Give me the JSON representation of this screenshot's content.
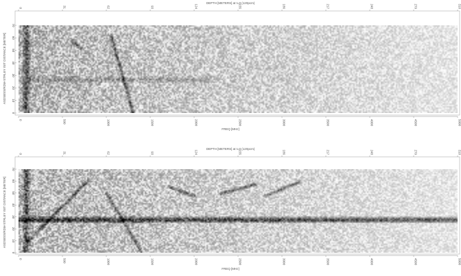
{
  "chart_data": [
    {
      "type": "heatmap",
      "title": "DEPTH [METERS] at t=0 (120pcm)",
      "xlabel": "FREQ [MHz]",
      "ylabel": "ASDSBSS/RDM-STRLEY ISIT  DISTANCE [METER]",
      "x_ticks": [
        "0",
        "500",
        "1000",
        "1500",
        "2000",
        "2500",
        "3000",
        "3500",
        "4000",
        "4500",
        "5000"
      ],
      "top_ticks": [
        "0",
        "31",
        "62",
        "93",
        "124",
        "155",
        "186",
        "217",
        "248",
        "279",
        "310"
      ],
      "y_ticks": [
        "0",
        "10",
        "20",
        "30",
        "40",
        "50",
        "60",
        "70"
      ],
      "xlim": [
        0,
        5000
      ],
      "ylim": [
        0,
        70
      ],
      "colormap": "grayscale",
      "features": [
        {
          "kind": "diagonal",
          "from": [
            1050,
            62
          ],
          "to": [
            1300,
            0
          ]
        },
        {
          "kind": "diagonal",
          "from": [
            600,
            58
          ],
          "to": [
            700,
            52
          ]
        },
        {
          "kind": "horizontal-band",
          "y": 27,
          "x_range": [
            100,
            2200
          ],
          "strength": 0.3
        },
        {
          "kind": "vertical-band",
          "x": 80,
          "strength": 0.9
        }
      ]
    },
    {
      "type": "heatmap",
      "title": "DEPTH [METERS] at t=0 (120pcm)",
      "xlabel": "FREQ [MHz]",
      "ylabel": "ASDSBSS/RDM-STRLEY ISIT  DISTANCE [METER]",
      "x_ticks": [
        "0",
        "500",
        "1000",
        "1500",
        "2000",
        "2500",
        "3000",
        "3500",
        "4000",
        "4500",
        "5000"
      ],
      "top_ticks": [
        "0",
        "31",
        "62",
        "93",
        "124",
        "155",
        "186",
        "217",
        "248",
        "279",
        "310"
      ],
      "y_ticks": [
        "0",
        "10",
        "20",
        "30",
        "40",
        "50",
        "60",
        "70"
      ],
      "xlim": [
        0,
        5000
      ],
      "ylim": [
        0,
        70
      ],
      "colormap": "grayscale",
      "features": [
        {
          "kind": "horizontal-band",
          "y": 28,
          "x_range": [
            0,
            5000
          ],
          "strength": 1.0
        },
        {
          "kind": "diagonal",
          "from": [
            800,
            62
          ],
          "to": [
            100,
            10
          ]
        },
        {
          "kind": "diagonal",
          "from": [
            1000,
            50
          ],
          "to": [
            1400,
            0
          ]
        },
        {
          "kind": "diagonal",
          "from": [
            1700,
            56
          ],
          "to": [
            2000,
            48
          ]
        },
        {
          "kind": "diagonal",
          "from": [
            2300,
            50
          ],
          "to": [
            2700,
            58
          ]
        },
        {
          "kind": "diagonal",
          "from": [
            2800,
            48
          ],
          "to": [
            3200,
            60
          ]
        },
        {
          "kind": "vertical-band",
          "x": 80,
          "strength": 0.9
        }
      ]
    }
  ]
}
